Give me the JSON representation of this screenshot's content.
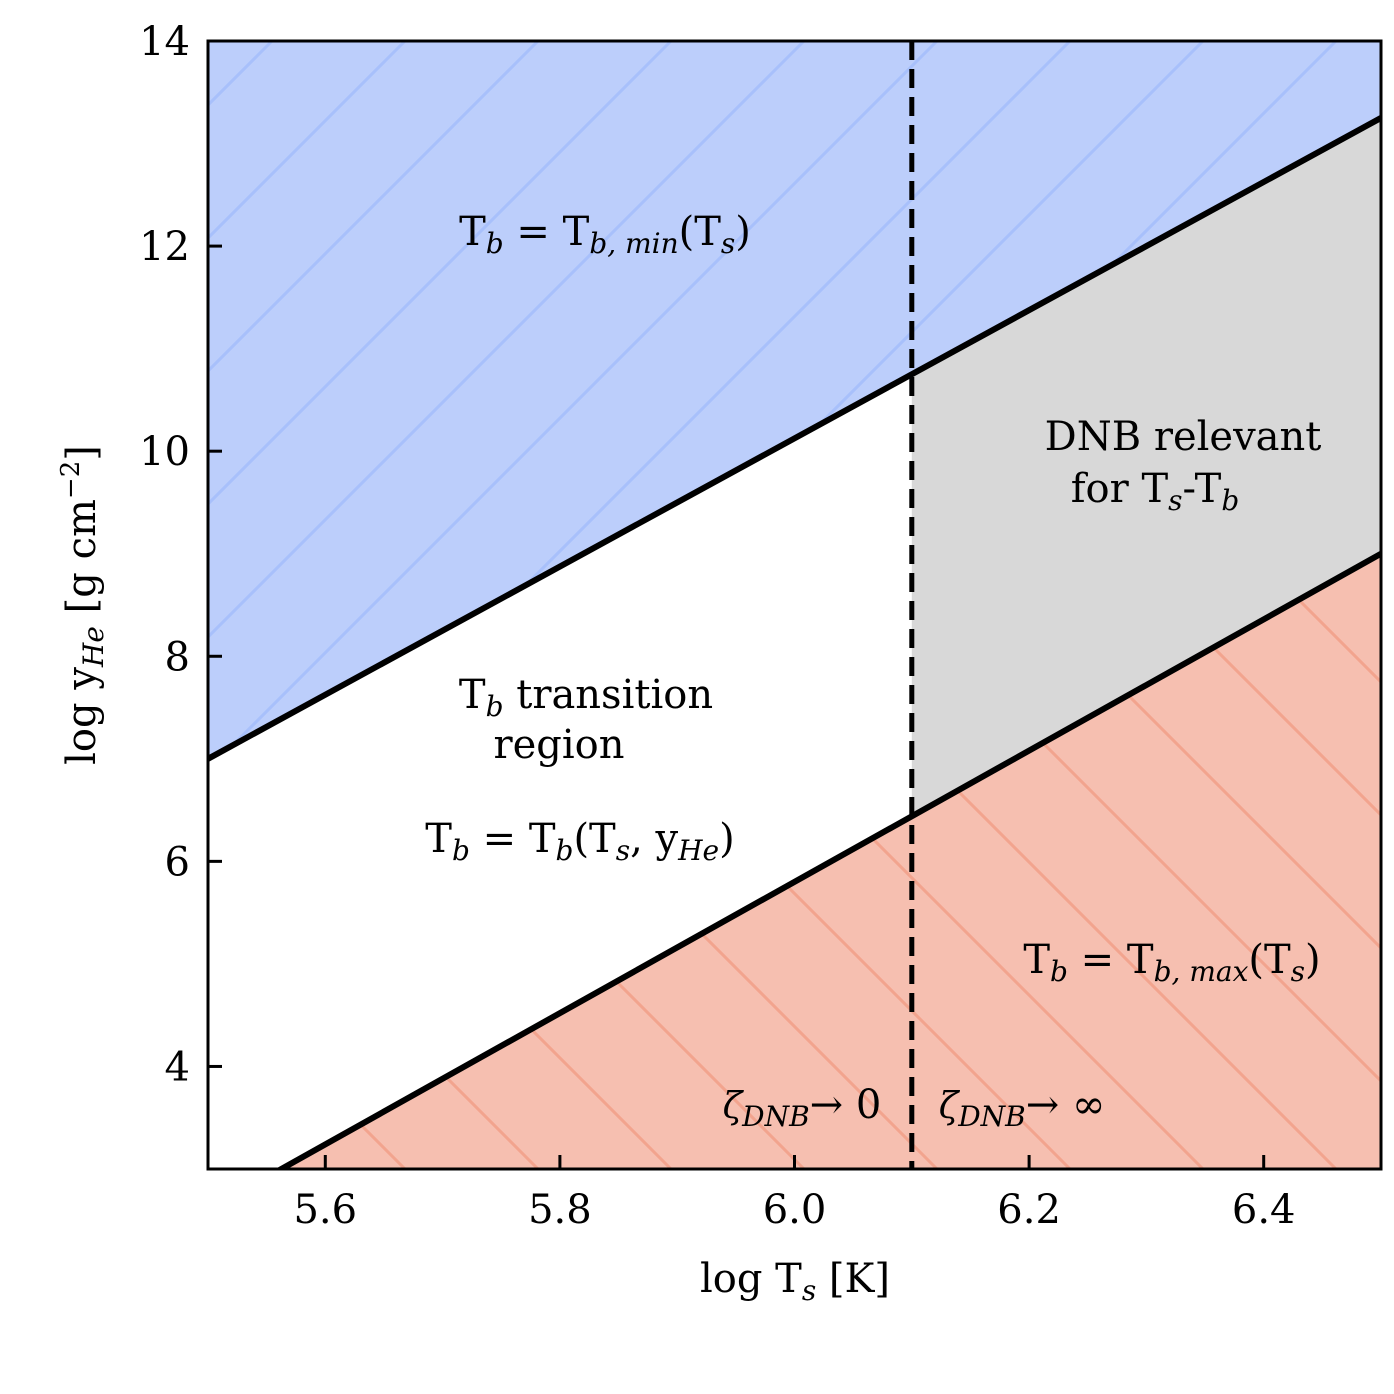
{
  "chart_data": {
    "type": "area",
    "xlim": [
      5.5,
      6.5
    ],
    "ylim": [
      3,
      14
    ],
    "xticks": [
      5.6,
      5.8,
      6.0,
      6.2,
      6.4
    ],
    "yticks": [
      4,
      6,
      8,
      10,
      12,
      14
    ],
    "x_tick_labels": [
      "5.6",
      "5.8",
      "6.0",
      "6.2",
      "6.4"
    ],
    "y_tick_labels": [
      "4",
      "6",
      "8",
      "10",
      "12",
      "14"
    ],
    "xlabel": {
      "main": "log T",
      "sub": "s",
      "after": " [K]"
    },
    "ylabel": {
      "main": "log y",
      "sub": "He",
      "after": " [g cm",
      "sup": "−2",
      "end": "]"
    },
    "lines": {
      "upper_boundary": {
        "x": [
          5.5,
          6.5
        ],
        "y": [
          7.0,
          13.25
        ]
      },
      "lower_boundary": {
        "x": [
          5.5,
          6.5
        ],
        "y": [
          2.6,
          9.0
        ]
      },
      "threshold": {
        "x": 6.1,
        "style": "dashed"
      }
    },
    "regions": {
      "upper": {
        "color": "#bccefb",
        "hatch_color": "#a8c0fb",
        "label": {
          "main": "T",
          "sub": "b",
          "eq": " = T",
          "sub2": "b, min",
          "end_open": "(T",
          "sub3": "s",
          "end_close": ")"
        }
      },
      "lower": {
        "color": "#f6bfb0",
        "hatch_color": "#f2a48e",
        "label": {
          "main": "T",
          "sub": "b",
          "eq": " = T",
          "sub2": "b, max",
          "end_open": "(T",
          "sub3": "s",
          "end_close": ")"
        }
      },
      "gray": {
        "color": "#d8d8d8",
        "label_line1": "DNB relevant",
        "label_line2": {
          "pre": "for T",
          "sub": "s",
          "mid": "-T",
          "sub2": "b"
        }
      },
      "middle": {
        "label_line1": {
          "main": "T",
          "sub": "b",
          "rest": " transition"
        },
        "label_line2": "region",
        "formula": {
          "main": "T",
          "sub": "b",
          "eq": " = T",
          "sub2": "b",
          "open": "(T",
          "sub3": "s",
          "comma": ", y",
          "sub4": "He",
          "close": ")"
        }
      }
    },
    "zeta_labels": {
      "left": {
        "sym": "ζ",
        "sub": "DNB",
        "rest": "→  0"
      },
      "right": {
        "sym": "ζ",
        "sub": "DNB",
        "rest": "→ ∞"
      }
    }
  }
}
